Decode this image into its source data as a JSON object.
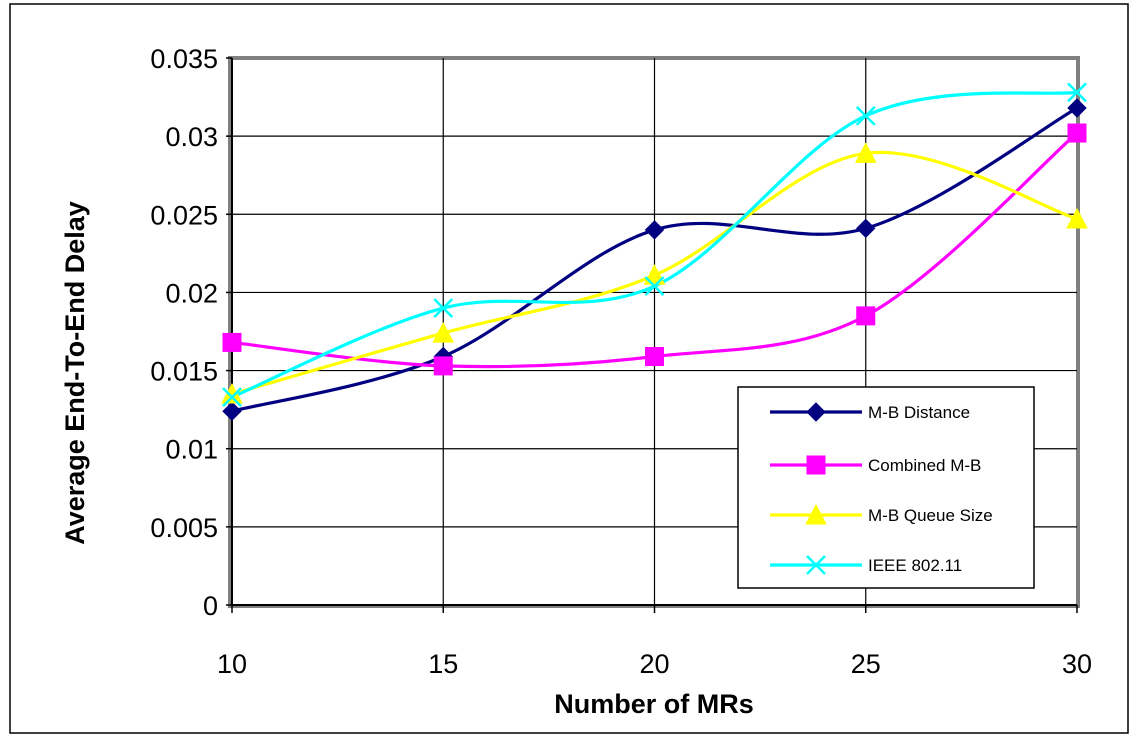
{
  "chart_data": {
    "type": "line",
    "title": "",
    "xlabel": "Number of MRs",
    "ylabel": "Average End-To-End Delay",
    "x": [
      10,
      15,
      20,
      25,
      30
    ],
    "x_tick_labels": [
      "10",
      "15",
      "20",
      "25",
      "30"
    ],
    "xlim": [
      10,
      30
    ],
    "ylim": [
      0,
      0.035
    ],
    "y_ticks": [
      0,
      0.005,
      0.01,
      0.015,
      0.02,
      0.025,
      0.03,
      0.035
    ],
    "y_tick_labels": [
      "0",
      "0.005",
      "0.01",
      "0.015",
      "0.02",
      "0.025",
      "0.03",
      "0.035"
    ],
    "grid": true,
    "smooth": true,
    "legend_position": "bottom-right",
    "series": [
      {
        "name": "M-B Distance",
        "values": [
          0.0124,
          0.0159,
          0.024,
          0.0241,
          0.0318
        ],
        "color": "#000080",
        "marker": "diamond"
      },
      {
        "name": "Combined M-B",
        "values": [
          0.0168,
          0.0153,
          0.0159,
          0.0185,
          0.0302
        ],
        "color": "#FF00FF",
        "marker": "square"
      },
      {
        "name": "M-B Queue Size",
        "values": [
          0.0135,
          0.0174,
          0.0211,
          0.0289,
          0.0247
        ],
        "color": "#FFFF00",
        "marker": "triangle"
      },
      {
        "name": "IEEE 802.11",
        "values": [
          0.0133,
          0.019,
          0.0204,
          0.0313,
          0.0328
        ],
        "color": "#00FFFF",
        "marker": "x"
      }
    ]
  }
}
